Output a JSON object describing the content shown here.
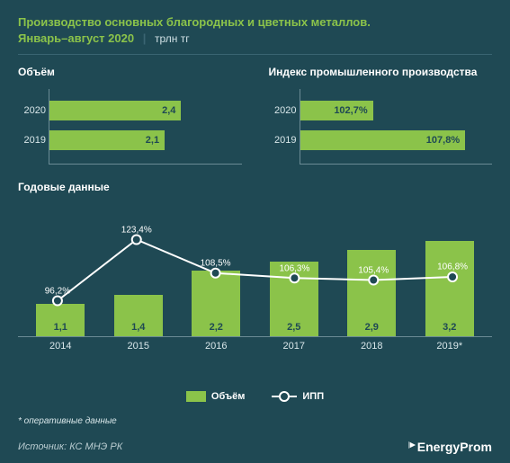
{
  "background_color": "#1f4954",
  "accent_color": "#8bc34a",
  "line_color": "#ffffff",
  "grid_color": "#6b8b95",
  "title_line1": "Производство основных благородных и цветных металлов.",
  "title_line2": "Январь–август 2020",
  "unit": "трлн тг",
  "panels": {
    "volume": {
      "title": "Объём",
      "type": "bar_horizontal",
      "max": 3.5,
      "rows": [
        {
          "label": "2020",
          "value": 2.4,
          "value_label": "2,4"
        },
        {
          "label": "2019",
          "value": 2.1,
          "value_label": "2,1"
        }
      ]
    },
    "index": {
      "title": "Индекс промышленного производства",
      "type": "bar_horizontal",
      "max": 112,
      "rows": [
        {
          "label": "2020",
          "value": 102.7,
          "value_label": "102,7%",
          "width_pct": 38
        },
        {
          "label": "2019",
          "value": 107.8,
          "value_label": "107,8%",
          "width_pct": 86
        }
      ]
    }
  },
  "annual": {
    "title": "Годовые данные",
    "type": "bar_line_combo",
    "categories": [
      "2014",
      "2015",
      "2016",
      "2017",
      "2018",
      "2019*"
    ],
    "bar_values": [
      1.1,
      1.4,
      2.2,
      2.5,
      2.9,
      3.2
    ],
    "bar_labels": [
      "1,1",
      "1,4",
      "2,2",
      "2,5",
      "2,9",
      "3,2"
    ],
    "bar_max": 4.5,
    "line_values": [
      96.2,
      123.4,
      108.5,
      106.3,
      105.4,
      106.8
    ],
    "line_labels": [
      "96,2%",
      "123,4%",
      "108,5%",
      "106,3%",
      "105,4%",
      "106,8%"
    ],
    "line_min": 80,
    "line_max": 140,
    "legend": {
      "bar": "Объём",
      "line": "ИПП"
    }
  },
  "footnote": "* оперативные данные",
  "source": "Источник: КС МНЭ РК",
  "logo": "EnergyProm"
}
